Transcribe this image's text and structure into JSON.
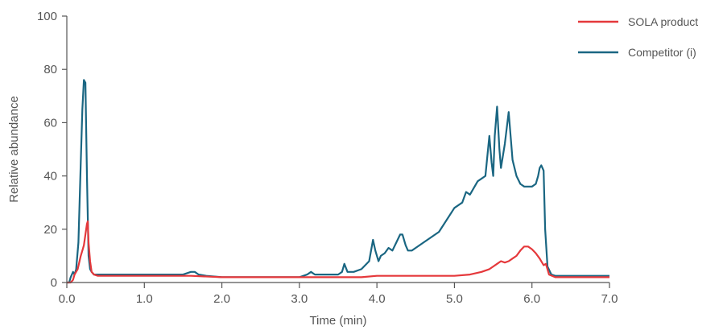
{
  "chart_data": {
    "type": "line",
    "title": "",
    "xlabel": "Time (min)",
    "ylabel": "Relative abundance",
    "xlim": [
      0.0,
      7.0
    ],
    "ylim": [
      0,
      100
    ],
    "x_ticks": [
      "0.0",
      "1.0",
      "2.0",
      "3.0",
      "4.0",
      "5.0",
      "6.0",
      "7.0"
    ],
    "y_ticks": [
      "0",
      "20",
      "40",
      "60",
      "80",
      "100"
    ],
    "grid": false,
    "legend_position": "top-right",
    "series": [
      {
        "name": "SOLA product",
        "color": "#e5383b",
        "x": [
          0.0,
          0.05,
          0.08,
          0.1,
          0.14,
          0.18,
          0.2,
          0.22,
          0.24,
          0.26,
          0.27,
          0.28,
          0.3,
          0.32,
          0.35,
          0.4,
          0.5,
          0.8,
          1.2,
          1.6,
          2.0,
          2.5,
          3.0,
          3.5,
          3.8,
          4.0,
          4.2,
          4.5,
          4.8,
          5.0,
          5.2,
          5.35,
          5.45,
          5.5,
          5.55,
          5.6,
          5.65,
          5.7,
          5.75,
          5.8,
          5.85,
          5.9,
          5.95,
          6.0,
          6.05,
          6.1,
          6.15,
          6.18,
          6.22,
          6.3,
          6.5,
          7.0
        ],
        "y": [
          0,
          0,
          1,
          3,
          5,
          10,
          12,
          14,
          18,
          22,
          23,
          15,
          8,
          4,
          3,
          2.5,
          2.5,
          2.5,
          2.5,
          2.5,
          2,
          2,
          2,
          2,
          2,
          2.5,
          2.5,
          2.5,
          2.5,
          2.5,
          3,
          4,
          5,
          6,
          7,
          8,
          7.5,
          8,
          9,
          10,
          12,
          13.5,
          13.5,
          12.5,
          11,
          9,
          6.5,
          7,
          3,
          2,
          2,
          2
        ]
      },
      {
        "name": "Competitor (i)",
        "color": "#1a6682",
        "x": [
          0.0,
          0.03,
          0.05,
          0.08,
          0.1,
          0.12,
          0.15,
          0.18,
          0.2,
          0.22,
          0.24,
          0.26,
          0.28,
          0.3,
          0.32,
          0.35,
          0.4,
          0.5,
          0.8,
          1.0,
          1.3,
          1.5,
          1.6,
          1.65,
          1.7,
          1.8,
          2.0,
          2.5,
          3.0,
          3.1,
          3.15,
          3.2,
          3.5,
          3.55,
          3.58,
          3.62,
          3.7,
          3.8,
          3.9,
          3.95,
          3.98,
          4.02,
          4.05,
          4.1,
          4.15,
          4.2,
          4.25,
          4.3,
          4.33,
          4.37,
          4.4,
          4.45,
          4.5,
          4.6,
          4.8,
          5.0,
          5.1,
          5.15,
          5.2,
          5.3,
          5.4,
          5.45,
          5.48,
          5.5,
          5.52,
          5.55,
          5.58,
          5.6,
          5.65,
          5.7,
          5.75,
          5.8,
          5.85,
          5.9,
          5.95,
          6.0,
          6.05,
          6.08,
          6.1,
          6.12,
          6.15,
          6.17,
          6.2,
          6.25,
          6.3,
          6.5,
          7.0
        ],
        "y": [
          0,
          0,
          2,
          4,
          3,
          5,
          15,
          45,
          65,
          76,
          75,
          40,
          10,
          5,
          4,
          3,
          3,
          3,
          3,
          3,
          3,
          3,
          4,
          4,
          3,
          2.5,
          2,
          2,
          2,
          3,
          4,
          3,
          3,
          4,
          7,
          4,
          4,
          5,
          8,
          16,
          12,
          8,
          10,
          11,
          13,
          12,
          15,
          18,
          18,
          14,
          12,
          12,
          13,
          15,
          19,
          28,
          30,
          34,
          33,
          38,
          40,
          55,
          45,
          40,
          55,
          66,
          50,
          43,
          52,
          64,
          46,
          40,
          37,
          36,
          36,
          36,
          37,
          40,
          43,
          44,
          42,
          20,
          6,
          3,
          2.5,
          2.5,
          2.5
        ]
      }
    ]
  }
}
